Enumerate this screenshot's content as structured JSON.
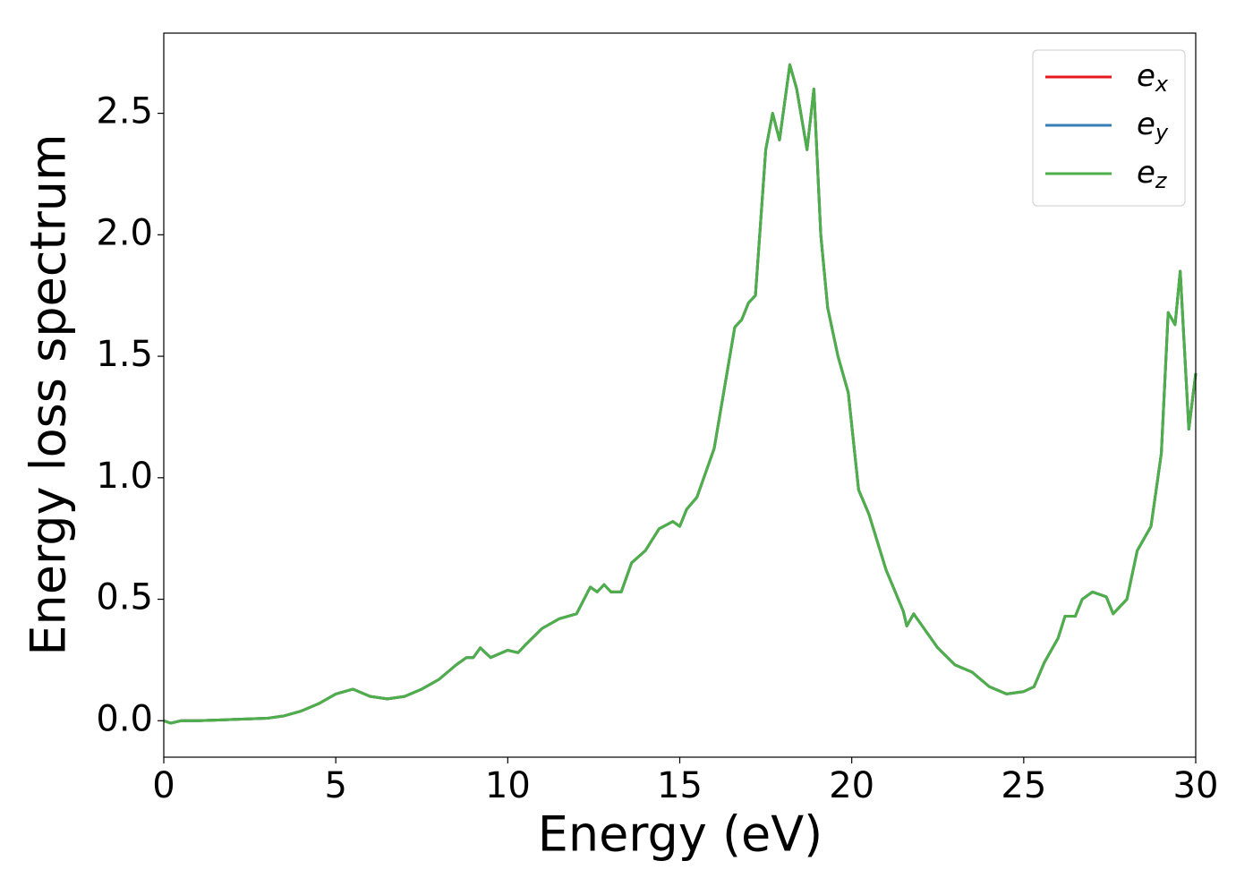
{
  "chart_data": {
    "type": "line",
    "xlabel": "Energy (eV)",
    "ylabel": "Energy loss spectrum",
    "x": [
      0,
      0.2,
      0.5,
      1,
      2,
      3,
      3.5,
      4,
      4.5,
      5,
      5.5,
      6,
      6.5,
      7,
      7.5,
      8,
      8.5,
      8.8,
      9,
      9.2,
      9.5,
      10,
      10.3,
      10.5,
      11,
      11.5,
      12,
      12.4,
      12.6,
      12.8,
      13,
      13.3,
      13.6,
      14,
      14.4,
      14.8,
      15,
      15.2,
      15.5,
      16,
      16.3,
      16.6,
      16.8,
      17,
      17.2,
      17.5,
      17.7,
      17.9,
      18.2,
      18.4,
      18.7,
      18.9,
      19.1,
      19.3,
      19.6,
      19.9,
      20.2,
      20.5,
      21,
      21.5,
      21.6,
      21.8,
      22,
      22.5,
      23,
      23.5,
      24,
      24.5,
      25,
      25.3,
      25.6,
      26,
      26.2,
      26.5,
      26.7,
      27,
      27.4,
      27.6,
      28,
      28.3,
      28.7,
      29,
      29.2,
      29.4,
      29.55,
      29.8,
      30
    ],
    "series": [
      {
        "name": "e_x",
        "color": "#e41a1c",
        "values": [
          0,
          -0.01,
          0,
          0,
          0.005,
          0.01,
          0.02,
          0.04,
          0.07,
          0.11,
          0.13,
          0.1,
          0.09,
          0.1,
          0.13,
          0.17,
          0.23,
          0.26,
          0.26,
          0.3,
          0.26,
          0.29,
          0.28,
          0.31,
          0.38,
          0.42,
          0.44,
          0.55,
          0.53,
          0.56,
          0.53,
          0.53,
          0.65,
          0.7,
          0.79,
          0.82,
          0.8,
          0.87,
          0.92,
          1.12,
          1.37,
          1.62,
          1.65,
          1.72,
          1.75,
          2.35,
          2.5,
          2.39,
          2.7,
          2.6,
          2.35,
          2.6,
          2.0,
          1.7,
          1.5,
          1.35,
          0.95,
          0.85,
          0.62,
          0.45,
          0.39,
          0.44,
          0.4,
          0.3,
          0.23,
          0.2,
          0.14,
          0.11,
          0.12,
          0.14,
          0.24,
          0.34,
          0.43,
          0.43,
          0.5,
          0.53,
          0.51,
          0.44,
          0.5,
          0.7,
          0.8,
          1.1,
          1.68,
          1.63,
          1.85,
          1.2,
          1.43
        ]
      },
      {
        "name": "e_y",
        "color": "#377eb8",
        "values": [
          0,
          -0.01,
          0,
          0,
          0.005,
          0.01,
          0.02,
          0.04,
          0.07,
          0.11,
          0.13,
          0.1,
          0.09,
          0.1,
          0.13,
          0.17,
          0.23,
          0.26,
          0.26,
          0.3,
          0.26,
          0.29,
          0.28,
          0.31,
          0.38,
          0.42,
          0.44,
          0.55,
          0.53,
          0.56,
          0.53,
          0.53,
          0.65,
          0.7,
          0.79,
          0.82,
          0.8,
          0.87,
          0.92,
          1.12,
          1.37,
          1.62,
          1.65,
          1.72,
          1.75,
          2.35,
          2.5,
          2.39,
          2.7,
          2.6,
          2.35,
          2.6,
          2.0,
          1.7,
          1.5,
          1.35,
          0.95,
          0.85,
          0.62,
          0.45,
          0.39,
          0.44,
          0.4,
          0.3,
          0.23,
          0.2,
          0.14,
          0.11,
          0.12,
          0.14,
          0.24,
          0.34,
          0.43,
          0.43,
          0.5,
          0.53,
          0.51,
          0.44,
          0.5,
          0.7,
          0.8,
          1.1,
          1.68,
          1.63,
          1.85,
          1.2,
          1.43
        ]
      },
      {
        "name": "e_z",
        "color": "#4daf4a",
        "values": [
          0,
          -0.01,
          0,
          0,
          0.005,
          0.01,
          0.02,
          0.04,
          0.07,
          0.11,
          0.13,
          0.1,
          0.09,
          0.1,
          0.13,
          0.17,
          0.23,
          0.26,
          0.26,
          0.3,
          0.26,
          0.29,
          0.28,
          0.31,
          0.38,
          0.42,
          0.44,
          0.55,
          0.53,
          0.56,
          0.53,
          0.53,
          0.65,
          0.7,
          0.79,
          0.82,
          0.8,
          0.87,
          0.92,
          1.12,
          1.37,
          1.62,
          1.65,
          1.72,
          1.75,
          2.35,
          2.5,
          2.39,
          2.7,
          2.6,
          2.35,
          2.6,
          2.0,
          1.7,
          1.5,
          1.35,
          0.95,
          0.85,
          0.62,
          0.45,
          0.39,
          0.44,
          0.4,
          0.3,
          0.23,
          0.2,
          0.14,
          0.11,
          0.12,
          0.14,
          0.24,
          0.34,
          0.43,
          0.43,
          0.5,
          0.53,
          0.51,
          0.44,
          0.5,
          0.7,
          0.8,
          1.1,
          1.68,
          1.63,
          1.85,
          1.2,
          1.43
        ]
      }
    ],
    "xlim": [
      0,
      30
    ],
    "xticks": [
      0,
      5,
      10,
      15,
      20,
      25,
      30
    ],
    "ylim": [
      -0.15,
      2.83
    ],
    "yticks": [
      {
        "value": 0,
        "label": "0.0"
      },
      0.5,
      {
        "value": 1,
        "label": "1.0"
      },
      1.5,
      {
        "value": 2,
        "label": "2.0"
      },
      2.5
    ],
    "legend": "upper right",
    "grid": false
  }
}
